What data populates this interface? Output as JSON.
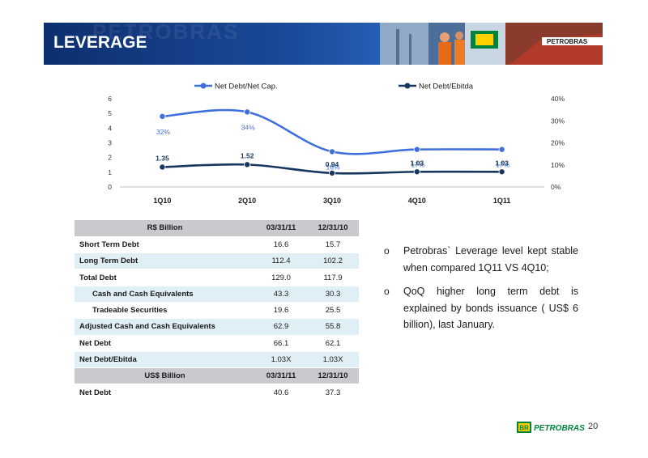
{
  "header": {
    "title": "LEVERAGE",
    "ghost_text": "PETROBRAS",
    "ship_text": "PETROBRAS"
  },
  "colors": {
    "header_dark": "#0d2f6e",
    "series_light": "#3f6fdc",
    "series_dark": "#17375e",
    "table_header": "#c9cacd",
    "table_stripe": "#e0eef5",
    "logo_green": "#00843d",
    "logo_yellow": "#ffd100"
  },
  "chart_data": {
    "type": "line",
    "categories": [
      "1Q10",
      "2Q10",
      "3Q10",
      "4Q10",
      "1Q11"
    ],
    "legend_placement": "top",
    "grid": false,
    "series": [
      {
        "name": "Net Debt/Net Cap.",
        "axis": "right",
        "values": [
          32,
          34,
          16,
          17,
          17
        ],
        "data_labels": [
          "32%",
          "34%",
          "16%",
          "17%",
          "17%"
        ]
      },
      {
        "name": "Net Debt/Ebitda",
        "axis": "left",
        "values": [
          1.35,
          1.52,
          0.94,
          1.03,
          1.03
        ],
        "data_labels": [
          "1.35",
          "1.52",
          "0.94",
          "1.03",
          "1.03"
        ]
      }
    ],
    "y_left": {
      "ylim": [
        0,
        6
      ],
      "ticks": [
        "0",
        "1",
        "2",
        "3",
        "4",
        "5",
        "6"
      ]
    },
    "y_right": {
      "ylim": [
        0,
        40
      ],
      "ticks": [
        "0%",
        "10%",
        "20%",
        "30%",
        "40%"
      ]
    }
  },
  "table": {
    "header": [
      "R$ Billion",
      "03/31/11",
      "12/31/10"
    ],
    "rows": [
      {
        "label": "Short Term Debt",
        "v1": "16.6",
        "v2": "15.7",
        "bold": true,
        "indent": false
      },
      {
        "label": "Long Term Debt",
        "v1": "112.4",
        "v2": "102.2",
        "bold": true,
        "indent": false
      },
      {
        "label": "Total Debt",
        "v1": "129.0",
        "v2": "117.9",
        "bold": true,
        "indent": false
      },
      {
        "label": "Cash and Cash Equivalents",
        "v1": "43.3",
        "v2": "30.3",
        "bold": true,
        "indent": true
      },
      {
        "label": "Tradeable Securities",
        "v1": "19.6",
        "v2": "25.5",
        "bold": true,
        "indent": true
      },
      {
        "label": "Adjusted Cash and Cash Equivalents",
        "v1": "62.9",
        "v2": "55.8",
        "bold": true,
        "indent": false
      },
      {
        "label": "Net Debt",
        "v1": "66.1",
        "v2": "62.1",
        "bold": true,
        "indent": false
      },
      {
        "label": "Net Debt/Ebitda",
        "v1": "1.03X",
        "v2": "1.03X",
        "bold": true,
        "indent": false
      }
    ],
    "header2": [
      "US$ Billion",
      "03/31/11",
      "12/31/10"
    ],
    "rows2": [
      {
        "label": "Net Debt",
        "v1": "40.6",
        "v2": "37.3",
        "bold": true,
        "indent": false
      }
    ]
  },
  "bullets": {
    "marker": "o",
    "items": [
      "Petrobras` Leverage level kept stable when compared 1Q11 VS 4Q10;",
      "QoQ higher long term debt  is explained by bonds issuance ( US$ 6 billion), last January."
    ]
  },
  "footer": {
    "logo_mark": "BR",
    "logo_text": "PETROBRAS",
    "page_number": "20"
  }
}
